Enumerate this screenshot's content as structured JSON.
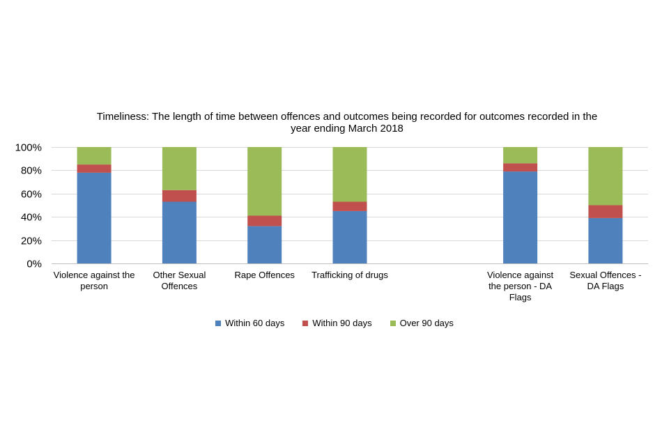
{
  "chart_data": {
    "type": "bar",
    "stacked": true,
    "title_lines": [
      "Timeliness: The length of time between offences and outcomes being recorded for outcomes recorded in the",
      "year ending March 2018"
    ],
    "categories": [
      [
        "Violence against the",
        "person"
      ],
      [
        "Other Sexual",
        "Offences"
      ],
      [
        "Rape Offences"
      ],
      [
        "Trafficking of drugs"
      ],
      [],
      [
        "Violence against",
        "the person - DA",
        "Flags"
      ],
      [
        "Sexual Offences -",
        "DA Flags"
      ]
    ],
    "series": [
      {
        "name": "Within 60 days",
        "color": "#4f81bd",
        "values": [
          78,
          53,
          32,
          45,
          null,
          79,
          39
        ]
      },
      {
        "name": "Within 90 days",
        "color": "#c0504d",
        "values": [
          7,
          10,
          9,
          8,
          null,
          7,
          11
        ]
      },
      {
        "name": "Over 90 days",
        "color": "#9bbb59",
        "values": [
          15,
          37,
          59,
          47,
          null,
          14,
          50
        ]
      }
    ],
    "y_ticks": [
      "0%",
      "20%",
      "40%",
      "60%",
      "80%",
      "100%"
    ],
    "ylim": [
      0,
      100
    ],
    "grid": true,
    "legend_position": "bottom"
  }
}
